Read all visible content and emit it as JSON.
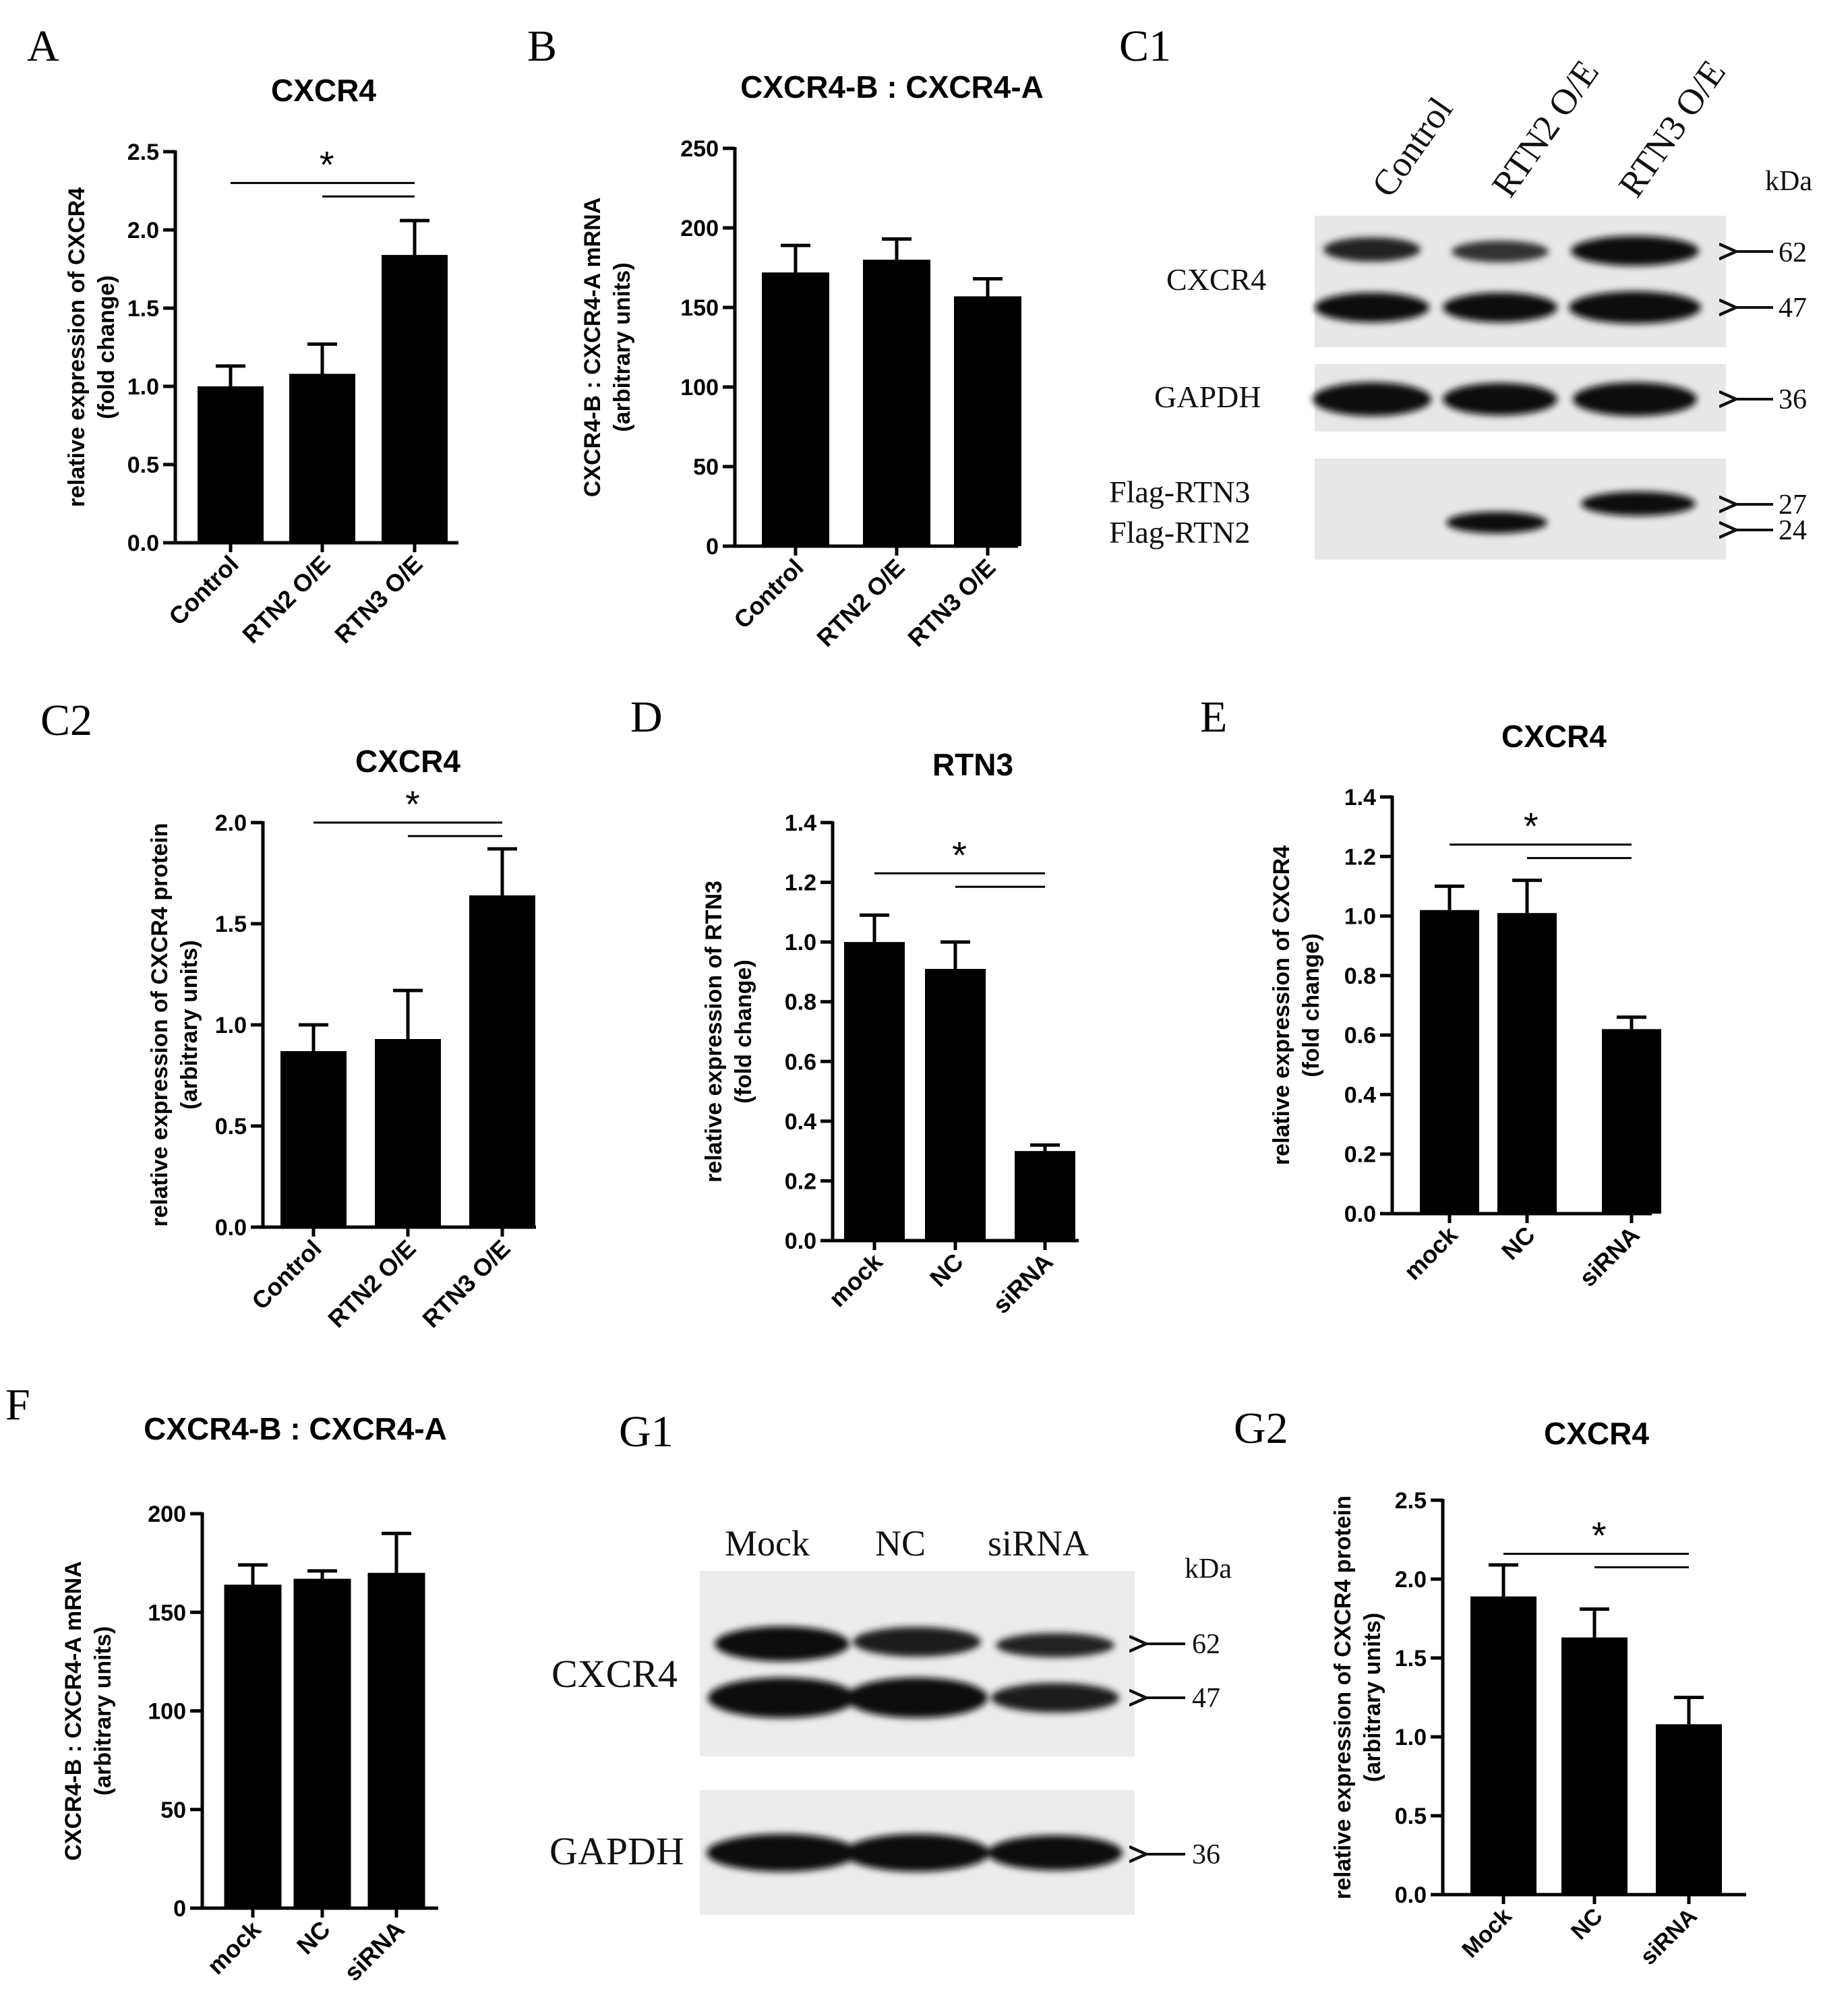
{
  "panel_labels": {
    "A": "A",
    "B": "B",
    "C1": "C1",
    "C2": "C2",
    "D": "D",
    "E": "E",
    "F": "F",
    "G1": "G1",
    "G2": "G2"
  },
  "chart_data": [
    {
      "id": "A",
      "type": "bar",
      "title": "CXCR4",
      "ylabel_lines": [
        "relative expression of CXCR4",
        "(fold change)"
      ],
      "categories": [
        "Control",
        "RTN2 O/E",
        "RTN3 O/E"
      ],
      "values": [
        1.0,
        1.08,
        1.84
      ],
      "errors": [
        0.13,
        0.19,
        0.22
      ],
      "ylim": [
        0,
        2.5
      ],
      "yticks": [
        "0.0",
        "0.5",
        "1.0",
        "1.5",
        "2.0",
        "2.5"
      ],
      "ytick_values": [
        0,
        0.5,
        1.0,
        1.5,
        2.0,
        2.5
      ],
      "significance": {
        "label": "*",
        "from": 0,
        "mid": 1,
        "to": 2,
        "level": 2.3
      }
    },
    {
      "id": "B",
      "type": "bar",
      "title": "CXCR4-B : CXCR4-A",
      "ylabel_lines": [
        "CXCR4-B : CXCR4-A mRNA",
        "(arbitrary units)"
      ],
      "categories": [
        "Control",
        "RTN2 O/E",
        "RTN3 O/E"
      ],
      "values": [
        172,
        180,
        157
      ],
      "errors": [
        17,
        13,
        11
      ],
      "ylim": [
        0,
        250
      ],
      "yticks": [
        "0",
        "50",
        "100",
        "150",
        "200",
        "250"
      ],
      "ytick_values": [
        0,
        50,
        100,
        150,
        200,
        250
      ]
    },
    {
      "id": "C2",
      "type": "bar",
      "title": "CXCR4",
      "ylabel_lines": [
        "relative expression of CXCR4 protein",
        "(arbitrary units)"
      ],
      "categories": [
        "Control",
        "RTN2 O/E",
        "RTN3 O/E"
      ],
      "values": [
        0.87,
        0.93,
        1.64
      ],
      "errors": [
        0.13,
        0.24,
        0.23
      ],
      "ylim": [
        0,
        2.0
      ],
      "yticks": [
        "0.0",
        "0.5",
        "1.0",
        "1.5",
        "2.0"
      ],
      "ytick_values": [
        0,
        0.5,
        1.0,
        1.5,
        2.0
      ],
      "significance": {
        "label": "*",
        "from": 0,
        "mid": 1,
        "to": 2,
        "level": 2.0
      }
    },
    {
      "id": "D",
      "type": "bar",
      "title": "RTN3",
      "ylabel_lines": [
        "relative expression of RTN3",
        "(fold change)"
      ],
      "categories": [
        "mock",
        "NC",
        "siRNA"
      ],
      "values": [
        1.0,
        0.91,
        0.3
      ],
      "errors": [
        0.09,
        0.09,
        0.02
      ],
      "ylim": [
        0,
        1.4
      ],
      "yticks": [
        "0.0",
        "0.2",
        "0.4",
        "0.6",
        "0.8",
        "1.0",
        "1.2",
        "1.4"
      ],
      "ytick_values": [
        0,
        0.2,
        0.4,
        0.6,
        0.8,
        1.0,
        1.2,
        1.4
      ],
      "significance": {
        "label": "*",
        "from": 0,
        "mid": 1,
        "to": 2,
        "level": 1.23
      }
    },
    {
      "id": "E",
      "type": "bar",
      "title": "CXCR4",
      "ylabel_lines": [
        "relative expression of CXCR4",
        "(fold change)"
      ],
      "categories": [
        "mock",
        "NC",
        "siRNA"
      ],
      "values": [
        1.02,
        1.01,
        0.62
      ],
      "errors": [
        0.08,
        0.11,
        0.04
      ],
      "ylim": [
        0,
        1.4
      ],
      "yticks": [
        "0.0",
        "0.2",
        "0.4",
        "0.6",
        "0.8",
        "1.0",
        "1.2",
        "1.4"
      ],
      "ytick_values": [
        0,
        0.2,
        0.4,
        0.6,
        0.8,
        1.0,
        1.2,
        1.4
      ],
      "significance": {
        "label": "*",
        "from": 0,
        "mid": 1,
        "to": 2,
        "level": 1.24
      }
    },
    {
      "id": "F",
      "type": "bar",
      "title": "CXCR4-B : CXCR4-A",
      "ylabel_lines": [
        "CXCR4-B : CXCR4-A mRNA",
        "(arbitrary units)"
      ],
      "categories": [
        "mock",
        "NC",
        "siRNA"
      ],
      "values": [
        164,
        167,
        170
      ],
      "errors": [
        10,
        4,
        20
      ],
      "ylim": [
        0,
        200
      ],
      "yticks": [
        "0",
        "50",
        "100",
        "150",
        "200"
      ],
      "ytick_values": [
        0,
        50,
        100,
        150,
        200
      ]
    },
    {
      "id": "G2",
      "type": "bar",
      "title": "CXCR4",
      "ylabel_lines": [
        "relative expression of CXCR4 protein",
        "(arbitrary units)"
      ],
      "categories": [
        "Mock",
        "NC",
        "siRNA"
      ],
      "values": [
        1.89,
        1.63,
        1.08
      ],
      "errors": [
        0.2,
        0.18,
        0.17
      ],
      "ylim": [
        0,
        2.5
      ],
      "yticks": [
        "0.0",
        "0.5",
        "1.0",
        "1.5",
        "2.0",
        "2.5"
      ],
      "ytick_values": [
        0,
        0.5,
        1.0,
        1.5,
        2.0,
        2.5
      ],
      "significance": {
        "label": "*",
        "from": 0,
        "mid": 1,
        "to": 2,
        "level": 2.16
      }
    }
  ],
  "blots": {
    "C1": {
      "lanes": [
        "Control",
        "RTN2 O/E",
        "RTN3 O/E"
      ],
      "unit": "kDa",
      "rows": [
        {
          "label": "CXCR4",
          "markers": [
            "62",
            "47"
          ]
        },
        {
          "label": "GAPDH",
          "markers": [
            "36"
          ]
        },
        {
          "label_top": "Flag-RTN3",
          "label_bottom": "Flag-RTN2",
          "markers": [
            "27",
            "24"
          ]
        }
      ]
    },
    "G1": {
      "lanes": [
        "Mock",
        "NC",
        "siRNA"
      ],
      "unit": "kDa",
      "rows": [
        {
          "label": "CXCR4",
          "markers": [
            "62",
            "47"
          ]
        },
        {
          "label": "GAPDH",
          "markers": [
            "36"
          ]
        }
      ]
    }
  }
}
